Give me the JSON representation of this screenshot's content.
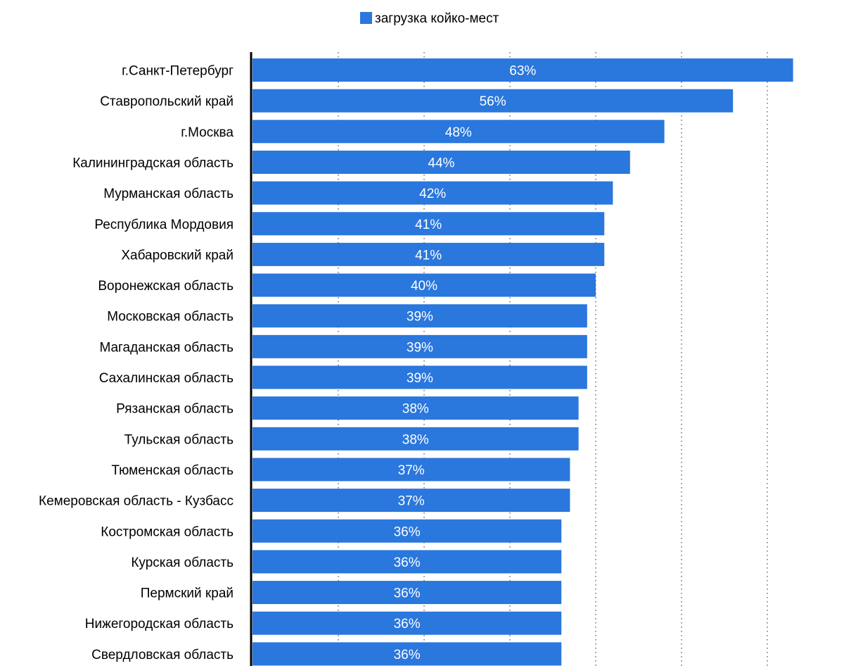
{
  "chart_data": {
    "type": "bar",
    "orientation": "horizontal",
    "legend": {
      "position": "top-center",
      "entries": [
        {
          "label": "загрузка койко-мест",
          "color": "#2a77dd"
        }
      ]
    },
    "categories": [
      "г.Санкт-Петербург",
      "Ставропольский край",
      "г.Москва",
      "Калининградская область",
      "Мурманская область",
      "Республика Мордовия",
      "Хабаровский край",
      "Воронежская область",
      "Московская область",
      "Магаданская область",
      "Сахалинская область",
      "Рязанская область",
      "Тульская область",
      "Тюменская область",
      "Кемеровская область - Кузбасс",
      "Костромская область",
      "Курская область",
      "Пермский край",
      "Нижегородская область",
      "Свердловская область"
    ],
    "series": [
      {
        "name": "загрузка койко-мест",
        "color": "#2a77dd",
        "values": [
          63,
          56,
          48,
          44,
          42,
          41,
          41,
          40,
          39,
          39,
          39,
          38,
          38,
          37,
          37,
          36,
          36,
          36,
          36,
          36
        ],
        "labels": [
          "63%",
          "56%",
          "48%",
          "44%",
          "42%",
          "41%",
          "41%",
          "40%",
          "39%",
          "39%",
          "39%",
          "38%",
          "38%",
          "37%",
          "37%",
          "36%",
          "36%",
          "36%",
          "36%",
          "36%"
        ]
      }
    ],
    "xlim": [
      0,
      65
    ],
    "gridlines": [
      10,
      20,
      30,
      40,
      50,
      60
    ],
    "grid": "vertical-dotted",
    "axis_color": "#000000",
    "grid_color": "#555555"
  }
}
